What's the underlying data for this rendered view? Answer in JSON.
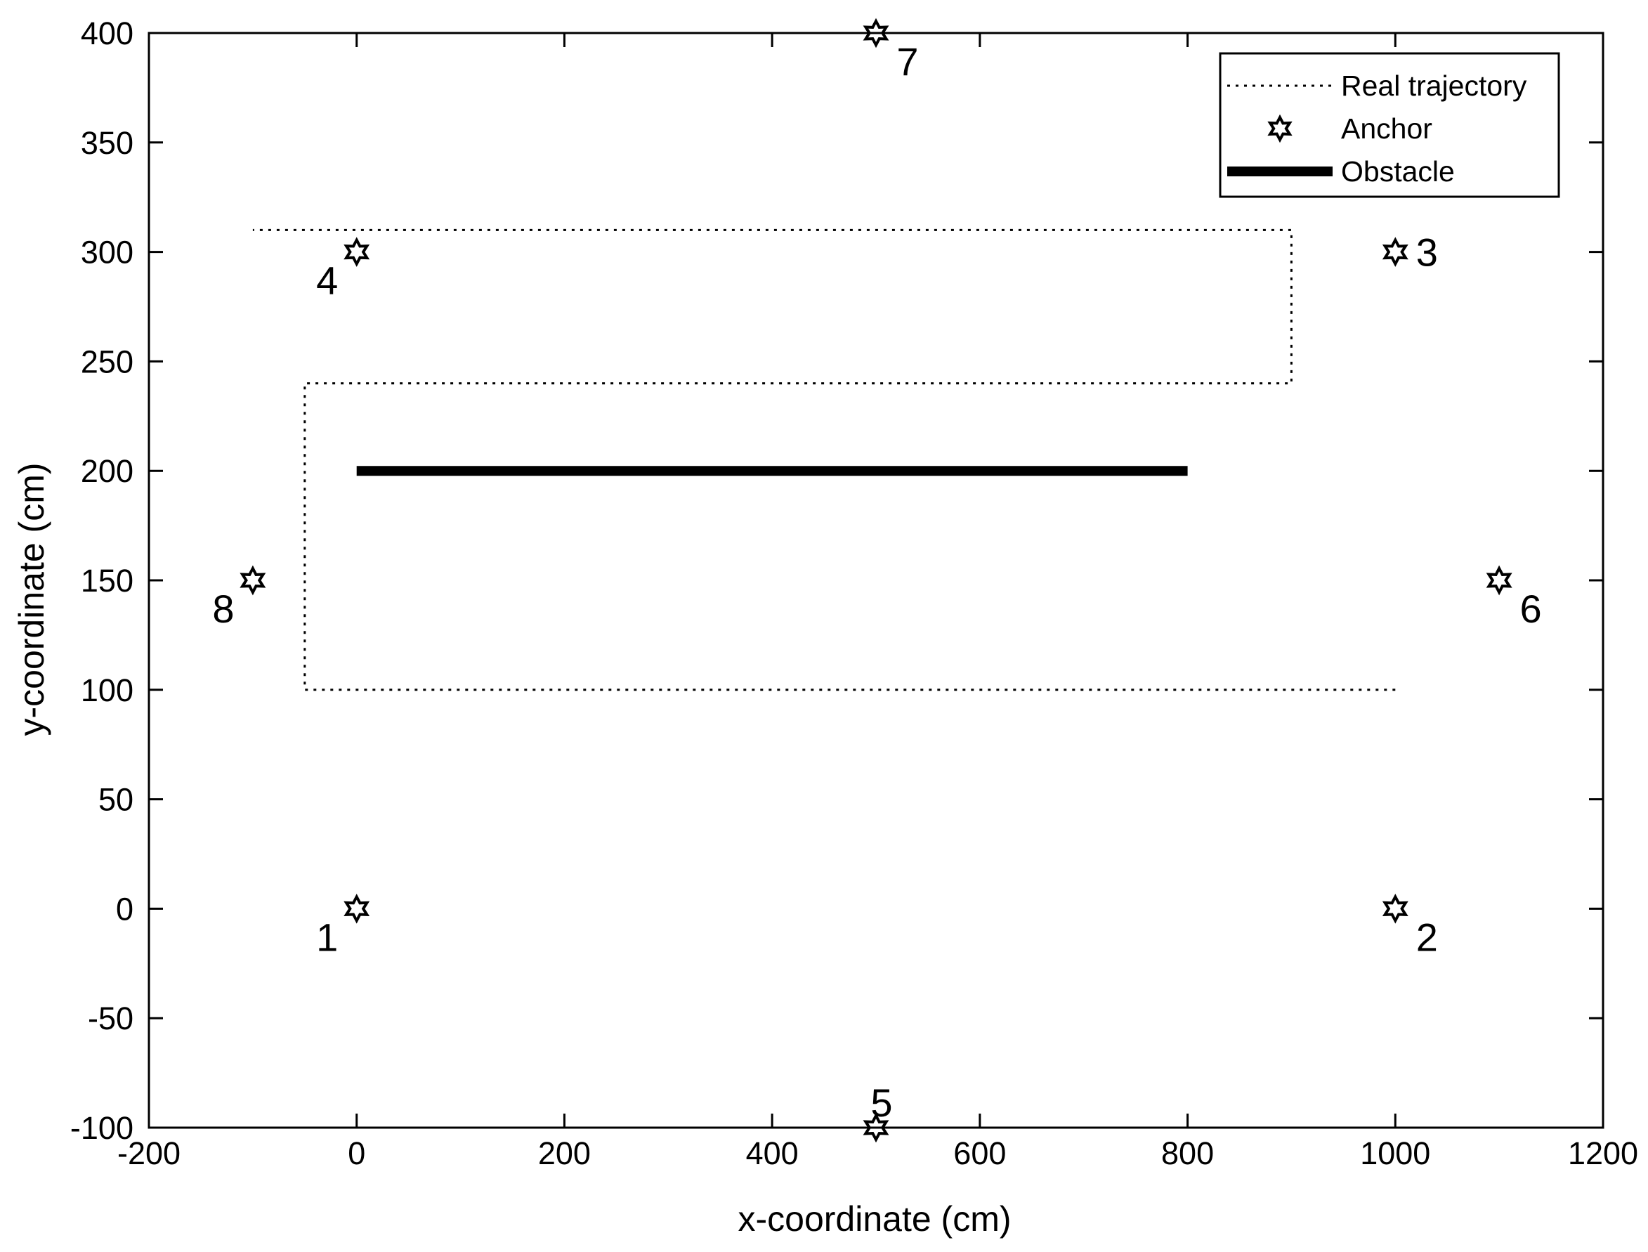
{
  "chart_data": {
    "type": "line",
    "title": "",
    "xlabel": "x-coordinate (cm)",
    "ylabel": "y-coordinate (cm)",
    "xlim": [
      -200,
      1200
    ],
    "ylim": [
      -100,
      400
    ],
    "xticks": [
      -200,
      0,
      200,
      400,
      600,
      800,
      1000,
      1200
    ],
    "yticks": [
      -100,
      -50,
      0,
      50,
      100,
      150,
      200,
      250,
      300,
      350,
      400
    ],
    "grid": false,
    "legend": {
      "placement": "top-right",
      "entries": [
        {
          "label": "Real trajectory",
          "style": "dotted"
        },
        {
          "label": "Anchor",
          "style": "star-marker"
        },
        {
          "label": "Obstacle",
          "style": "thick-solid"
        }
      ]
    },
    "series": [
      {
        "name": "Real trajectory",
        "style": "dotted",
        "color": "#000000",
        "points": [
          [
            1000,
            100
          ],
          [
            -50,
            100
          ],
          [
            -50,
            240
          ],
          [
            900,
            240
          ],
          [
            900,
            310
          ],
          [
            -100,
            310
          ]
        ]
      },
      {
        "name": "Obstacle",
        "style": "thick-solid",
        "color": "#000000",
        "points": [
          [
            0,
            200
          ],
          [
            800,
            200
          ]
        ]
      }
    ],
    "anchors": [
      {
        "label": "1",
        "x": 0,
        "y": 0,
        "label_pos": "below-left"
      },
      {
        "label": "2",
        "x": 1000,
        "y": 0,
        "label_pos": "below-right"
      },
      {
        "label": "3",
        "x": 1000,
        "y": 300,
        "label_pos": "above-right"
      },
      {
        "label": "4",
        "x": 0,
        "y": 300,
        "label_pos": "below-left"
      },
      {
        "label": "5",
        "x": 500,
        "y": -100,
        "label_pos": "above"
      },
      {
        "label": "6",
        "x": 1100,
        "y": 150,
        "label_pos": "below-right"
      },
      {
        "label": "7",
        "x": 500,
        "y": 400,
        "label_pos": "below-right"
      },
      {
        "label": "8",
        "x": -100,
        "y": 150,
        "label_pos": "below-left"
      }
    ]
  }
}
